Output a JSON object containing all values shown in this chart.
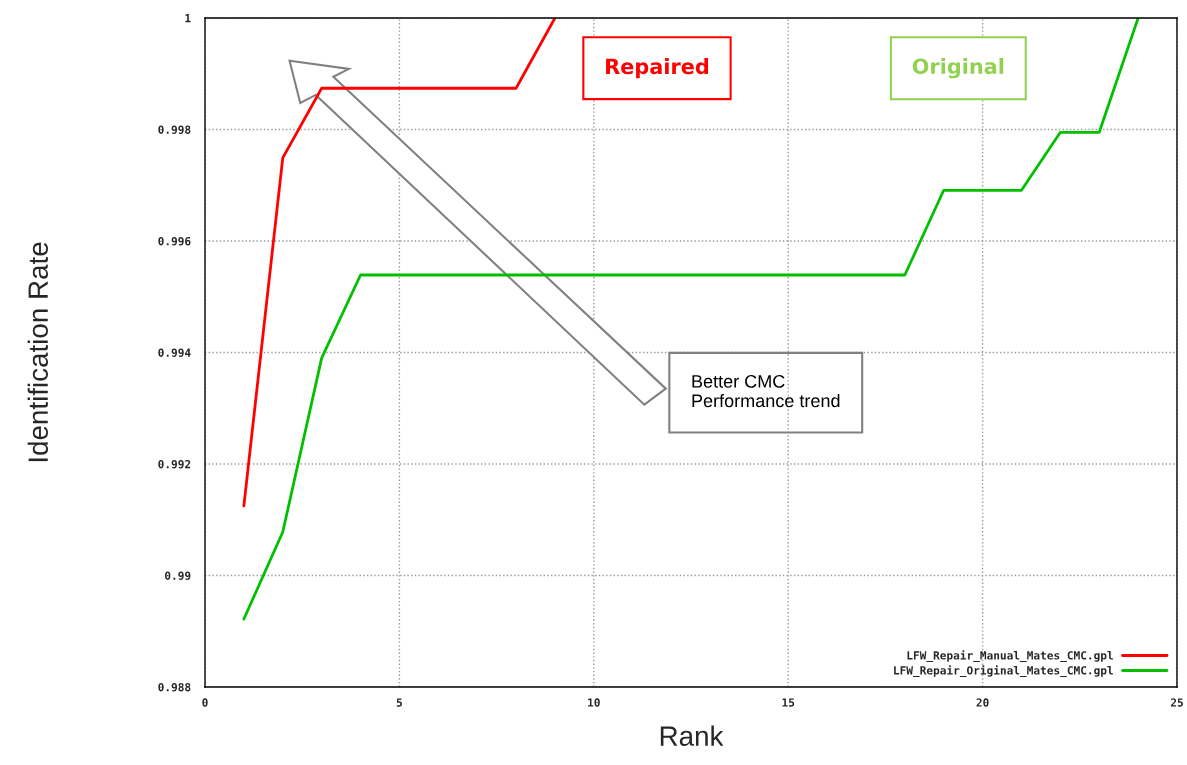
{
  "chart_data": {
    "type": "line",
    "xlabel": "Rank",
    "ylabel": "Identification Rate",
    "series": [
      {
        "name": "LFW_Repair_Manual_Mates_CMC.gpl",
        "color": "#ff0000",
        "x": [
          1,
          2,
          3,
          8,
          9
        ],
        "values": [
          0.99125,
          0.99749,
          0.99874,
          0.99874,
          1.0
        ]
      },
      {
        "name": "LFW_Repair_Original_Mates_CMC.gpl",
        "color": "#00c000",
        "x": [
          1,
          2,
          3,
          4,
          18,
          19,
          21,
          22,
          23,
          24
        ],
        "values": [
          0.98922,
          0.99078,
          0.9939,
          0.99539,
          0.99539,
          0.99691,
          0.99691,
          0.99795,
          0.99795,
          1.0
        ]
      }
    ],
    "annotations": [
      "Repaired",
      "Original",
      "Better CMC\nPerformance trend"
    ],
    "xlim": [
      0,
      25
    ],
    "xticks": [
      0,
      5,
      10,
      15,
      20,
      25
    ],
    "ylim": [
      0.988,
      1
    ],
    "yticks": [
      {
        "value": 0.988,
        "label": "0.988"
      },
      {
        "value": 0.99,
        "label": "0.99"
      },
      {
        "value": 0.992,
        "label": "0.992"
      },
      {
        "value": 0.994,
        "label": "0.994"
      },
      {
        "value": 0.996,
        "label": "0.996"
      },
      {
        "value": 0.998,
        "label": "0.998"
      },
      {
        "value": 1,
        "label": "1"
      }
    ],
    "grid": true,
    "legend": "bottom right",
    "marker": "none",
    "line_style": "solid"
  }
}
